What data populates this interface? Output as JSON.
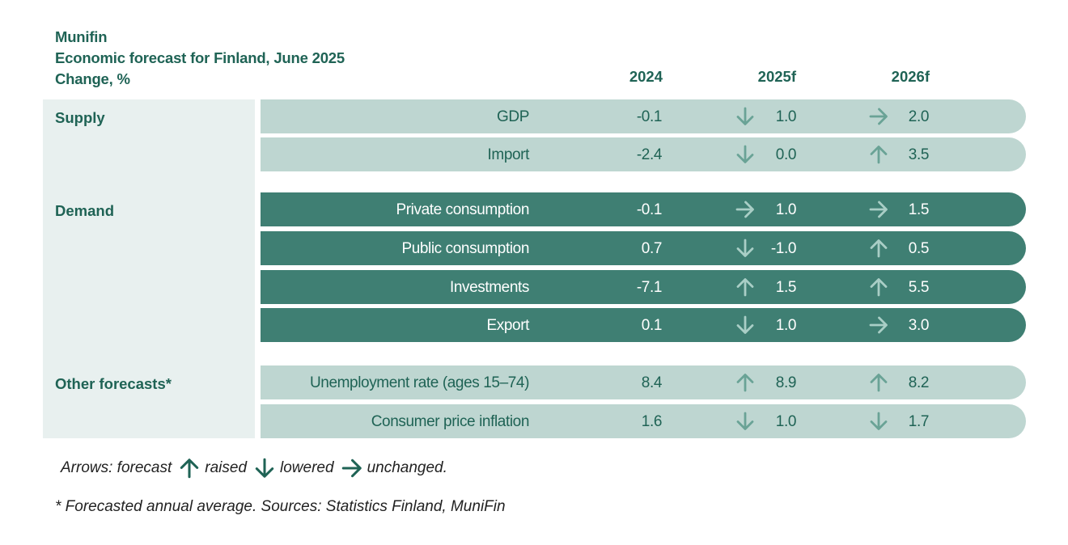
{
  "header": {
    "line1": "Munifin",
    "line2": "Economic forecast for Finland, June 2025",
    "line3": "Change, %"
  },
  "columns": {
    "c2024": "2024",
    "c2025": "2025f",
    "c2026": "2026f"
  },
  "groups": {
    "supply": "Supply",
    "demand": "Demand",
    "other": "Other forecasts*"
  },
  "rows": [
    {
      "label": "GDP",
      "v2024": "-0.1",
      "a2025": "down",
      "v2025": "1.0",
      "a2026": "right",
      "v2026": "2.0"
    },
    {
      "label": "Import",
      "v2024": "-2.4",
      "a2025": "down",
      "v2025": "0.0",
      "a2026": "up",
      "v2026": "3.5"
    },
    {
      "label": "Private consumption",
      "v2024": "-0.1",
      "a2025": "right",
      "v2025": "1.0",
      "a2026": "right",
      "v2026": "1.5"
    },
    {
      "label": "Public consumption",
      "v2024": "0.7",
      "a2025": "down",
      "v2025": "-1.0",
      "a2026": "up",
      "v2026": "0.5"
    },
    {
      "label": "Investments",
      "v2024": "-7.1",
      "a2025": "up",
      "v2025": "1.5",
      "a2026": "up",
      "v2026": "5.5"
    },
    {
      "label": "Export",
      "v2024": "0.1",
      "a2025": "down",
      "v2025": "1.0",
      "a2026": "right",
      "v2026": "3.0"
    },
    {
      "label": "Unemployment rate (ages 15–74)",
      "v2024": "8.4",
      "a2025": "up",
      "v2025": "8.9",
      "a2026": "up",
      "v2026": "8.2"
    },
    {
      "label": "Consumer price inflation",
      "v2024": "1.6",
      "a2025": "down",
      "v2025": "1.0",
      "a2026": "down",
      "v2026": "1.7"
    }
  ],
  "legend": {
    "prefix": "Arrows: forecast",
    "raised": "raised",
    "lowered": "lowered",
    "unchanged": "unchanged."
  },
  "footnote": "* Forecasted annual average. Sources: Statistics Finland, MuniFin",
  "colors": {
    "primary": "#1f6355",
    "light_row": "#bed6d1",
    "dark_row": "#3f7f73",
    "side_panel": "#e8f0ef"
  }
}
